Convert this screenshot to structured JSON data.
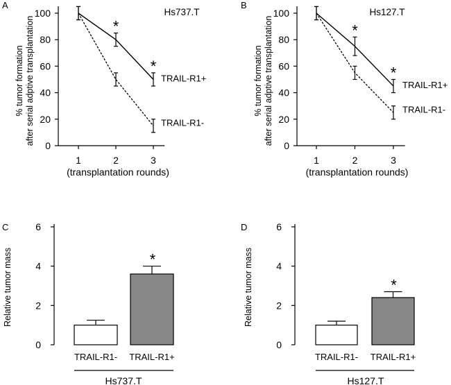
{
  "chart_data": [
    {
      "panel": "A",
      "type": "line",
      "title": "Hs737.T",
      "xlabel": "(transplantation rounds)",
      "ylabel": [
        "% tumor formation",
        "after serial adptive transplantation"
      ],
      "x": [
        1,
        2,
        3
      ],
      "xlim": [
        0.6,
        3.3
      ],
      "ylim": [
        0,
        100
      ],
      "yticks": [
        0,
        20,
        40,
        60,
        80,
        100
      ],
      "series": [
        {
          "name": "TRAIL-R1+",
          "values": [
            100,
            80,
            50
          ],
          "errors": [
            5,
            5,
            5
          ],
          "style": "solid"
        },
        {
          "name": "TRAIL-R1-",
          "values": [
            100,
            50,
            15
          ],
          "errors": [
            5,
            5,
            5
          ],
          "style": "dashed"
        }
      ],
      "annotations": [
        {
          "text": "*",
          "x": 2
        },
        {
          "text": "*",
          "x": 3
        }
      ]
    },
    {
      "panel": "B",
      "type": "line",
      "title": "Hs127.T",
      "xlabel": "(transplantation rounds)",
      "ylabel": [
        "% tumor formation",
        "after serial adptive transplantation"
      ],
      "x": [
        1,
        2,
        3
      ],
      "xlim": [
        0.6,
        3.3
      ],
      "ylim": [
        0,
        100
      ],
      "yticks": [
        0,
        20,
        40,
        60,
        80,
        100
      ],
      "series": [
        {
          "name": "TRAIL-R1+",
          "values": [
            100,
            75,
            45
          ],
          "errors": [
            5,
            7,
            5
          ],
          "style": "solid"
        },
        {
          "name": "TRAIL-R1-",
          "values": [
            100,
            55,
            25
          ],
          "errors": [
            5,
            5,
            5
          ],
          "style": "dashed"
        }
      ],
      "annotations": [
        {
          "text": "*",
          "x": 2
        },
        {
          "text": "*",
          "x": 3
        }
      ]
    },
    {
      "panel": "C",
      "type": "bar",
      "group": "Hs737.T",
      "ylabel": "Relative tumor mass",
      "categories": [
        "TRAIL-R1-",
        "TRAIL-R1+"
      ],
      "values": [
        1.0,
        3.6
      ],
      "errors": [
        0.25,
        0.4
      ],
      "colors": [
        "#ffffff",
        "#888888"
      ],
      "ylim": [
        0,
        6
      ],
      "yticks": [
        0,
        2,
        4,
        6
      ],
      "annotations": [
        {
          "text": "*",
          "category": "TRAIL-R1+"
        }
      ]
    },
    {
      "panel": "D",
      "type": "bar",
      "group": "Hs127.T",
      "ylabel": "Relative tumor mass",
      "categories": [
        "TRAIL-R1-",
        "TRAIL-R1+"
      ],
      "values": [
        1.0,
        2.4
      ],
      "errors": [
        0.2,
        0.3
      ],
      "colors": [
        "#ffffff",
        "#888888"
      ],
      "ylim": [
        0,
        6
      ],
      "yticks": [
        0,
        2,
        4,
        6
      ],
      "annotations": [
        {
          "text": "*",
          "category": "TRAIL-R1+"
        }
      ]
    }
  ]
}
